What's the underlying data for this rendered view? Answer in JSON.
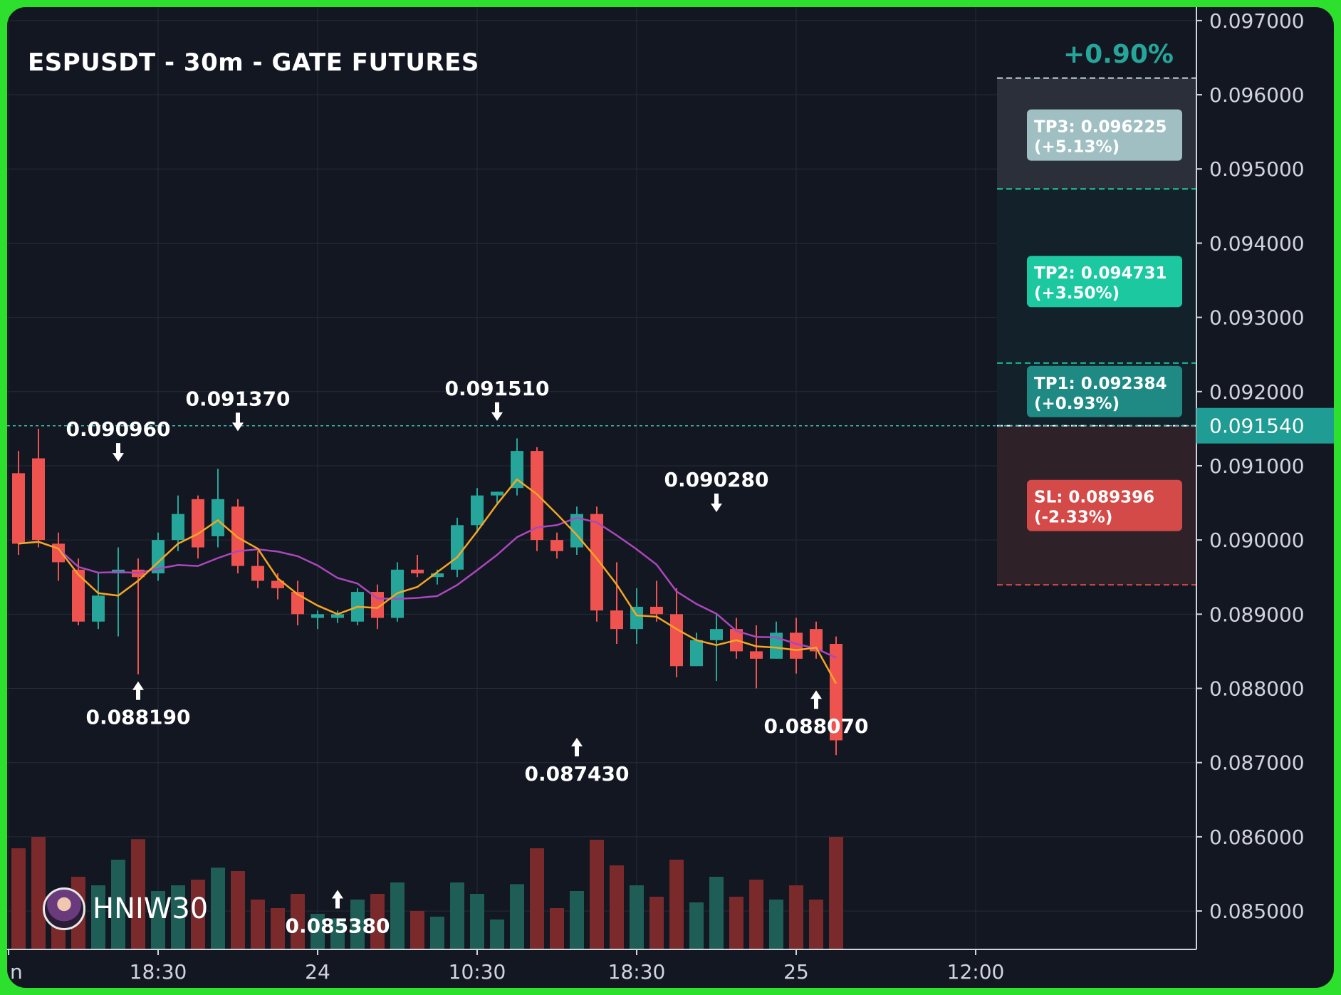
{
  "title": "ESPUSDT - 30m - GATE FUTURES",
  "brand": {
    "name": "HNIW30",
    "avatar_icon": "avatar-icon"
  },
  "colors": {
    "background": "#131722",
    "frame": "#2ee02e",
    "up": "#26a69a",
    "down": "#ef5350",
    "vol_up": "#1f5e57",
    "vol_down": "#7a2a2a",
    "ma_fast": "#f5a623",
    "ma_slow": "#ab47bc",
    "grid": "#262b36",
    "axis_text": "#d1d4dc",
    "tp": "#1cc8a0",
    "sl": "#d44a48"
  },
  "chart_data": {
    "type": "candlestick",
    "timeframe": "30m",
    "y_axis": {
      "side": "right",
      "ylim": [
        0.0843,
        0.0972
      ],
      "ticks": [
        "0.097000",
        "0.096000",
        "0.095000",
        "0.094000",
        "0.093000",
        "0.092000",
        "0.091000",
        "0.090000",
        "0.089000",
        "0.088000",
        "0.087000",
        "0.086000",
        "0.085000"
      ]
    },
    "x_axis": {
      "tick_labels": [
        {
          "label": "n",
          "index": -0.5
        },
        {
          "label": "18:30",
          "index": 7
        },
        {
          "label": "24",
          "index": 15
        },
        {
          "label": "10:30",
          "index": 23
        },
        {
          "label": "18:30",
          "index": 31
        },
        {
          "label": "25",
          "index": 39
        },
        {
          "label": "12:00",
          "index": 48
        }
      ]
    },
    "current_price": {
      "value": 0.09154,
      "label": "0.091540"
    },
    "candles": [
      [
        0.0909,
        0.0912,
        0.0898,
        0.08995
      ],
      [
        0.0911,
        0.0915,
        0.0899,
        0.09
      ],
      [
        0.08995,
        0.0901,
        0.08945,
        0.0897
      ],
      [
        0.0896,
        0.08975,
        0.08885,
        0.0889
      ],
      [
        0.0889,
        0.08955,
        0.0888,
        0.08925
      ],
      [
        0.08955,
        0.0899,
        0.0887,
        0.0896
      ],
      [
        0.0896,
        0.08975,
        0.08819,
        0.0895
      ],
      [
        0.08955,
        0.0901,
        0.08945,
        0.09
      ],
      [
        0.09,
        0.0906,
        0.08985,
        0.09035
      ],
      [
        0.09055,
        0.0906,
        0.08975,
        0.0899
      ],
      [
        0.09005,
        0.09096,
        0.0899,
        0.09055
      ],
      [
        0.09045,
        0.09055,
        0.08955,
        0.08965
      ],
      [
        0.08965,
        0.08985,
        0.08935,
        0.08945
      ],
      [
        0.08945,
        0.08955,
        0.0892,
        0.08935
      ],
      [
        0.0893,
        0.08945,
        0.08885,
        0.089
      ],
      [
        0.08895,
        0.08905,
        0.0888,
        0.089
      ],
      [
        0.08895,
        0.08905,
        0.08888,
        0.089
      ],
      [
        0.0889,
        0.08935,
        0.08885,
        0.0893
      ],
      [
        0.0893,
        0.0894,
        0.0888,
        0.08895
      ],
      [
        0.08895,
        0.0897,
        0.0889,
        0.0896
      ],
      [
        0.0896,
        0.0898,
        0.0895,
        0.08955
      ],
      [
        0.0895,
        0.0896,
        0.0894,
        0.08955
      ],
      [
        0.0896,
        0.0903,
        0.0895,
        0.0902
      ],
      [
        0.0902,
        0.0907,
        0.0901,
        0.0906
      ],
      [
        0.0906,
        0.09065,
        0.0905,
        0.09065
      ],
      [
        0.0907,
        0.09137,
        0.0906,
        0.0912
      ],
      [
        0.0912,
        0.09125,
        0.08985,
        0.09
      ],
      [
        0.09,
        0.0901,
        0.08975,
        0.08985
      ],
      [
        0.0899,
        0.09045,
        0.0898,
        0.09035
      ],
      [
        0.09035,
        0.09045,
        0.0889,
        0.08905
      ],
      [
        0.08905,
        0.0897,
        0.0886,
        0.0888
      ],
      [
        0.0888,
        0.08935,
        0.0886,
        0.0891
      ],
      [
        0.0891,
        0.08945,
        0.0889,
        0.089
      ],
      [
        0.089,
        0.08935,
        0.08815,
        0.0883
      ],
      [
        0.0883,
        0.08875,
        0.0883,
        0.08865
      ],
      [
        0.08865,
        0.089,
        0.0881,
        0.0888
      ],
      [
        0.0888,
        0.08895,
        0.0884,
        0.0885
      ],
      [
        0.0885,
        0.08885,
        0.088,
        0.0884
      ],
      [
        0.0884,
        0.0889,
        0.0884,
        0.08875
      ],
      [
        0.08875,
        0.08895,
        0.0882,
        0.0884
      ],
      [
        0.0888,
        0.0889,
        0.0884,
        0.0885
      ],
      [
        0.0886,
        0.0887,
        0.0871,
        0.0873
      ]
    ],
    "price_labels": [
      {
        "text": "0.088190",
        "type": "low"
      },
      {
        "text": "0.090960",
        "type": "high"
      },
      {
        "text": "0.091370",
        "type": "high"
      },
      {
        "text": "0.085380",
        "type": "low"
      },
      {
        "text": "0.091510",
        "type": "high"
      },
      {
        "text": "0.087430",
        "type": "low"
      },
      {
        "text": "0.090280",
        "type": "high"
      },
      {
        "text": "0.088070",
        "type": "low"
      }
    ],
    "position": {
      "entry": 0.09154,
      "change_label": "+0.90%",
      "levels": [
        {
          "name": "TP3",
          "value": 0.096225,
          "label": "TP3: 0.096225",
          "pct": "(+5.13%)"
        },
        {
          "name": "TP2",
          "value": 0.094731,
          "label": "TP2: 0.094731",
          "pct": "(+3.50%)"
        },
        {
          "name": "TP1",
          "value": 0.092384,
          "label": "TP1: 0.092384",
          "pct": "(+0.93%)"
        },
        {
          "name": "SL",
          "value": 0.089396,
          "label": "SL: 0.089396",
          "pct": "(-2.33%)"
        }
      ]
    }
  }
}
